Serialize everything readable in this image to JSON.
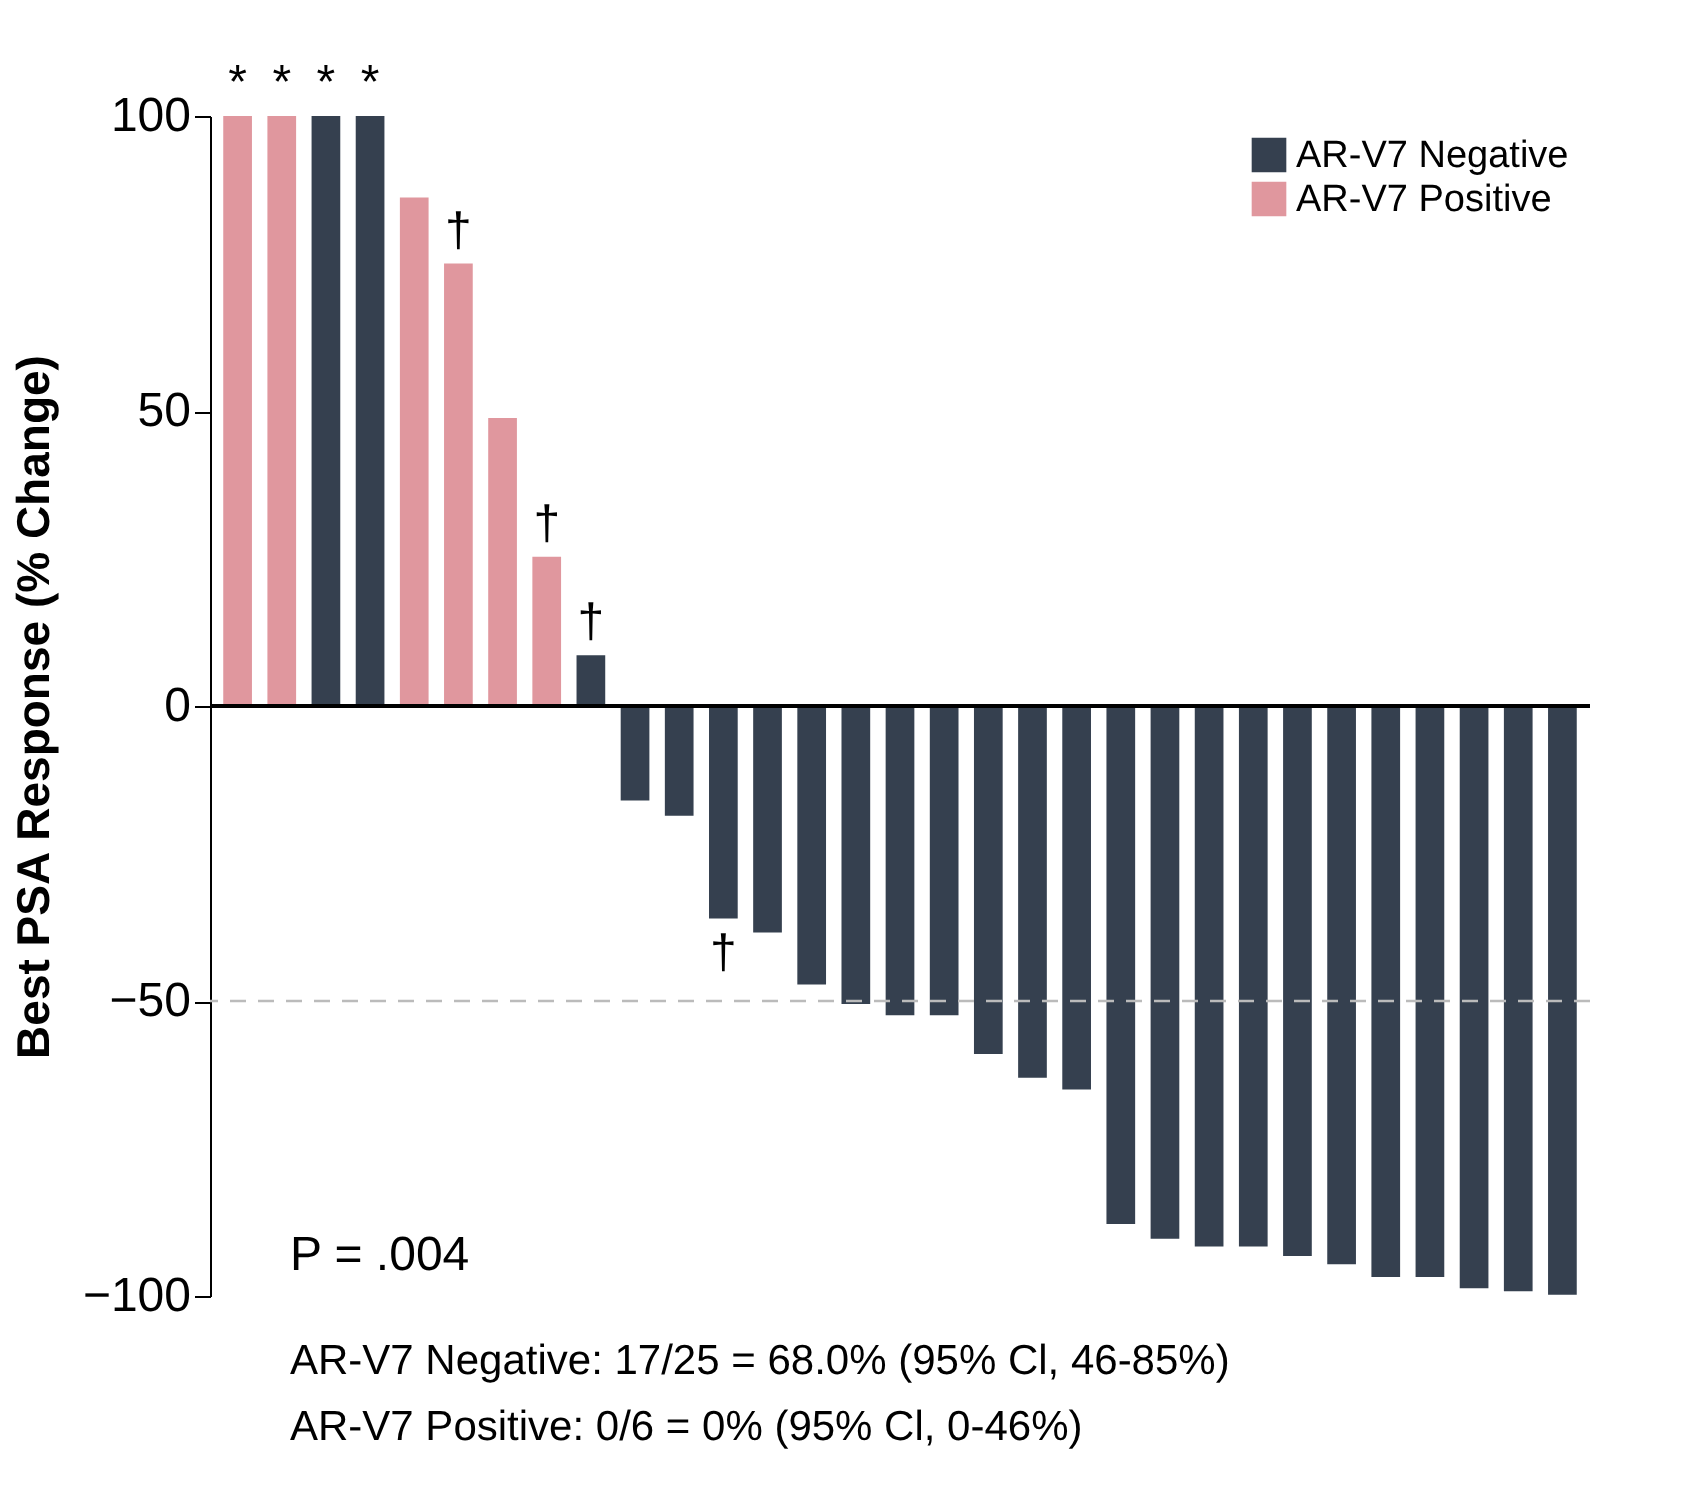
{
  "chart_data": {
    "type": "bar",
    "ylabel": "Best PSA Response (% Change)",
    "categories": [
      null,
      null,
      null,
      null,
      null,
      null,
      null,
      null,
      null,
      null,
      null,
      null,
      null,
      null,
      null,
      null,
      null,
      null,
      null,
      null,
      null,
      null,
      null,
      null,
      null,
      null,
      null,
      null,
      null,
      null,
      null
    ],
    "series": [
      {
        "name": "AR-V7 Negative",
        "color": "#35404f",
        "values": [
          null,
          null,
          100,
          100,
          null,
          null,
          null,
          null,
          8.6,
          -16,
          -18.6,
          -36,
          -38.4,
          -47.2,
          -50.5,
          -52.4,
          -52.4,
          -59,
          -63,
          -65,
          -87.8,
          -90.3,
          -91.6,
          -91.6,
          -93.2,
          -94.6,
          -96.8,
          -96.8,
          -98.7,
          -99.2,
          -99.8
        ],
        "value_labels": [
          null,
          null,
          "*",
          "*",
          null,
          null,
          null,
          null,
          "†",
          null,
          null,
          "†",
          null,
          null,
          null,
          null,
          null,
          null,
          null,
          null,
          null,
          null,
          null,
          null,
          null,
          null,
          null,
          null,
          null,
          null,
          null
        ]
      },
      {
        "name": "AR-V7 Positive",
        "color": "#e0979e",
        "values": [
          100,
          100,
          null,
          null,
          86.2,
          75,
          48.8,
          25.3,
          null,
          null,
          null,
          null,
          null,
          null,
          null,
          null,
          null,
          null,
          null,
          null,
          null,
          null,
          null,
          null,
          null,
          null,
          null,
          null,
          null,
          null,
          null
        ],
        "value_labels": [
          "*",
          "*",
          null,
          null,
          null,
          "†",
          null,
          "†",
          null,
          null,
          null,
          null,
          null,
          null,
          null,
          null,
          null,
          null,
          null,
          null,
          null,
          null,
          null,
          null,
          null,
          null,
          null,
          null,
          null,
          null,
          null
        ]
      }
    ],
    "ylim": [
      -100,
      100
    ],
    "yticks": [
      {
        "value": -100,
        "label": "−100"
      },
      {
        "value": -50,
        "label": "−50"
      },
      0,
      50,
      100
    ],
    "ref_lines": [
      {
        "axis": "y",
        "value": 0,
        "color": "#000000",
        "line_style": "solid"
      },
      {
        "axis": "y",
        "value": -50,
        "color": "#bbbbbb",
        "line_style": "dashed"
      }
    ],
    "annotations": [
      "P = .004",
      "AR-V7 Negative: 17/25 = 68.0% (95% Cl, 46-85%)",
      "AR-V7 Positive: 0/6 = 0% (95% Cl, 0-46%)"
    ],
    "legend": "top right",
    "grid": false,
    "tick_labels": "y"
  }
}
